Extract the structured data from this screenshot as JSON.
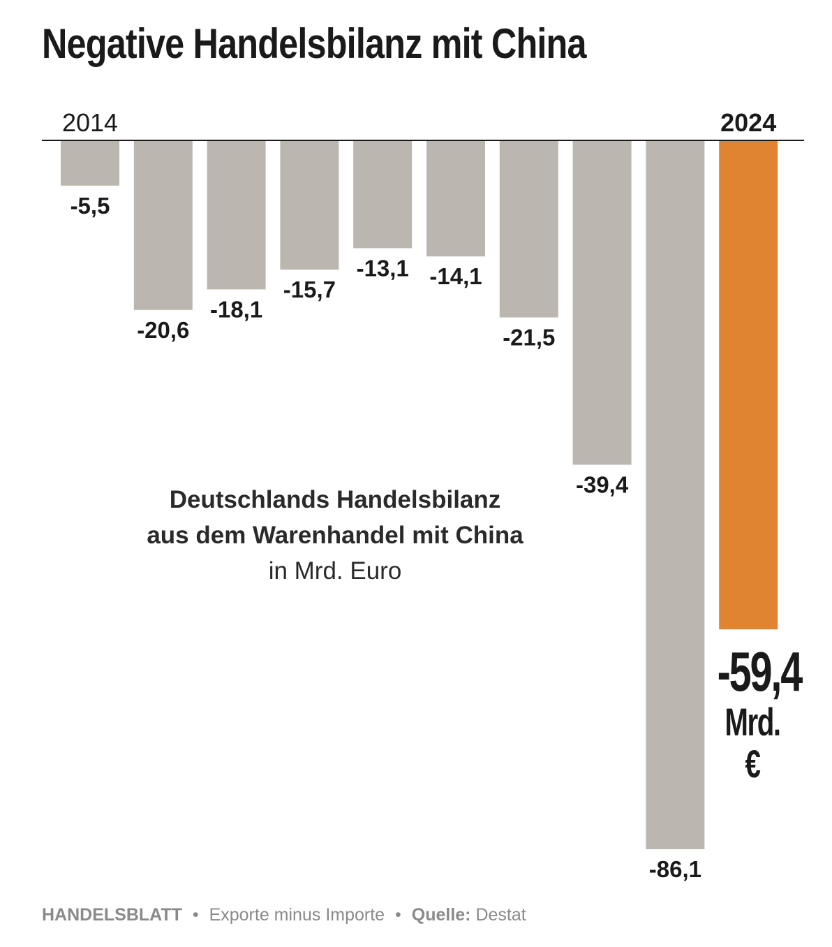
{
  "title": "Negative Handelsbilanz mit China",
  "caption": {
    "line1": "Deutschlands Handelsbilanz",
    "line2": "aus dem Warenhandel mit China",
    "line3": "in Mrd. Euro"
  },
  "highlight": {
    "value": "-59,4",
    "unit": "Mrd. €"
  },
  "footer": {
    "brand": "HANDELSBLATT",
    "separator": "•",
    "note": "Exporte minus Importe",
    "source_label": "Quelle:",
    "source": "Destat"
  },
  "colors": {
    "bar": "#bbb6b0",
    "highlight_bar": "#e08431",
    "axis": "#1a1a1a"
  },
  "chart_data": {
    "type": "bar",
    "title": "Negative Handelsbilanz mit China",
    "categories": [
      "2014",
      "",
      "",
      "",
      "",
      "",
      "",
      "",
      "",
      "2024"
    ],
    "values": [
      -5.5,
      -20.6,
      -18.1,
      -15.7,
      -13.1,
      -14.1,
      -21.5,
      -39.4,
      -86.1,
      -59.4
    ],
    "value_labels": [
      "-5,5",
      "-20,6",
      "-18,1",
      "-15,7",
      "-13,1",
      "-14,1",
      "-21,5",
      "-39,4",
      "-86,1",
      ""
    ],
    "highlight_index": 9,
    "ylim": [
      -86.1,
      0
    ],
    "grid": false,
    "legend": "none"
  }
}
